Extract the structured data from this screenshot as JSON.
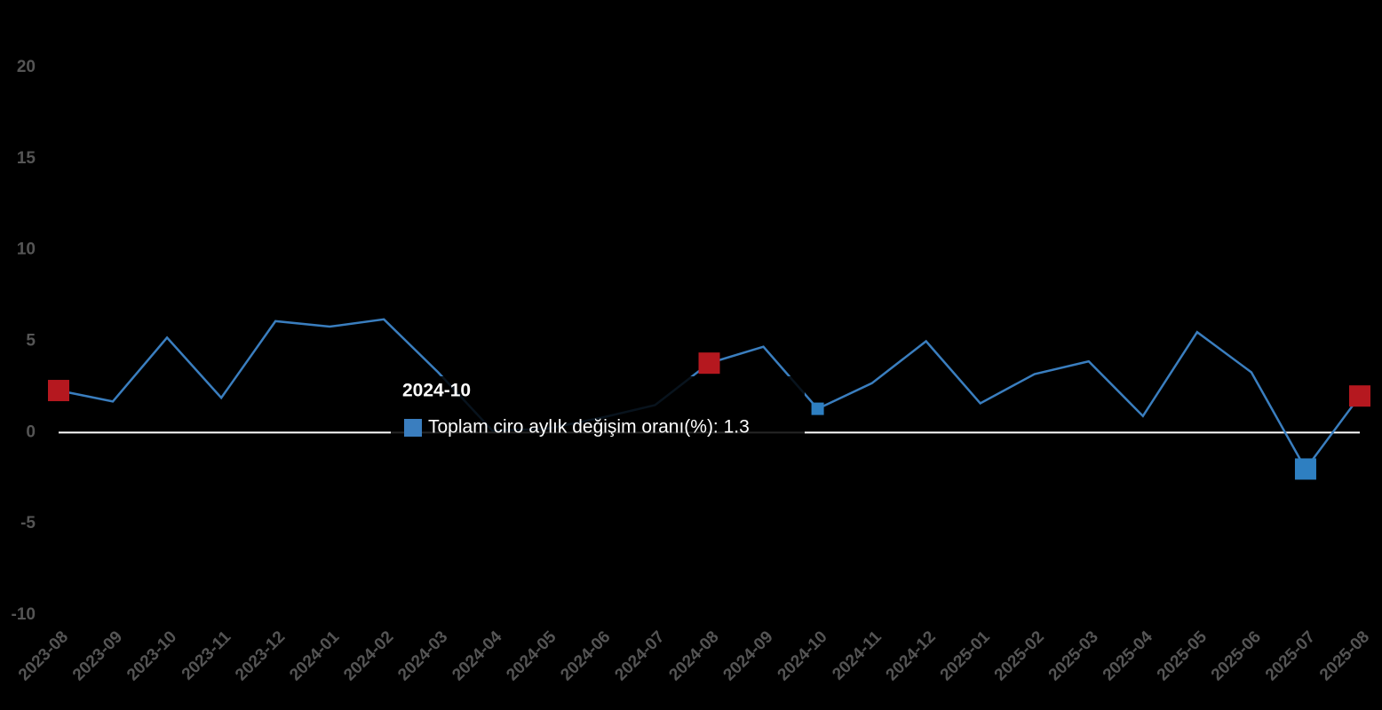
{
  "chart_data": {
    "type": "line",
    "categories": [
      "2023-08",
      "2023-09",
      "2023-10",
      "2023-11",
      "2023-12",
      "2024-01",
      "2024-02",
      "2024-03",
      "2024-04",
      "2024-05",
      "2024-06",
      "2024-07",
      "2024-08",
      "2024-09",
      "2024-10",
      "2024-11",
      "2024-12",
      "2025-01",
      "2025-02",
      "2025-03",
      "2025-04",
      "2025-05",
      "2025-06",
      "2025-07",
      "2025-08"
    ],
    "series": [
      {
        "name": "Toplam ciro aylık değişim oranı(%)",
        "color": "#3a7ebf",
        "values": [
          2.3,
          1.7,
          5.2,
          1.9,
          6.1,
          5.8,
          6.2,
          3.3,
          0.1,
          0.2,
          0.8,
          1.5,
          3.8,
          4.7,
          1.3,
          2.7,
          5.0,
          1.6,
          3.2,
          3.9,
          0.9,
          5.5,
          3.3,
          -2.0,
          2.0
        ]
      }
    ],
    "point_markers": [
      "#b5181f",
      null,
      null,
      null,
      null,
      null,
      null,
      null,
      null,
      null,
      null,
      null,
      "#b5181f",
      null,
      null,
      null,
      null,
      null,
      null,
      null,
      null,
      null,
      null,
      "#2e7fc1",
      "#b5181f"
    ],
    "ylim": [
      -10,
      20
    ],
    "yticks": [
      -10,
      -5,
      0,
      5,
      10,
      15,
      20
    ],
    "zero_line_color": "#ffffff",
    "tooltip": {
      "title": "2024-10",
      "text": "Toplam ciro aylık değişim oranı(%): 1.3"
    }
  }
}
